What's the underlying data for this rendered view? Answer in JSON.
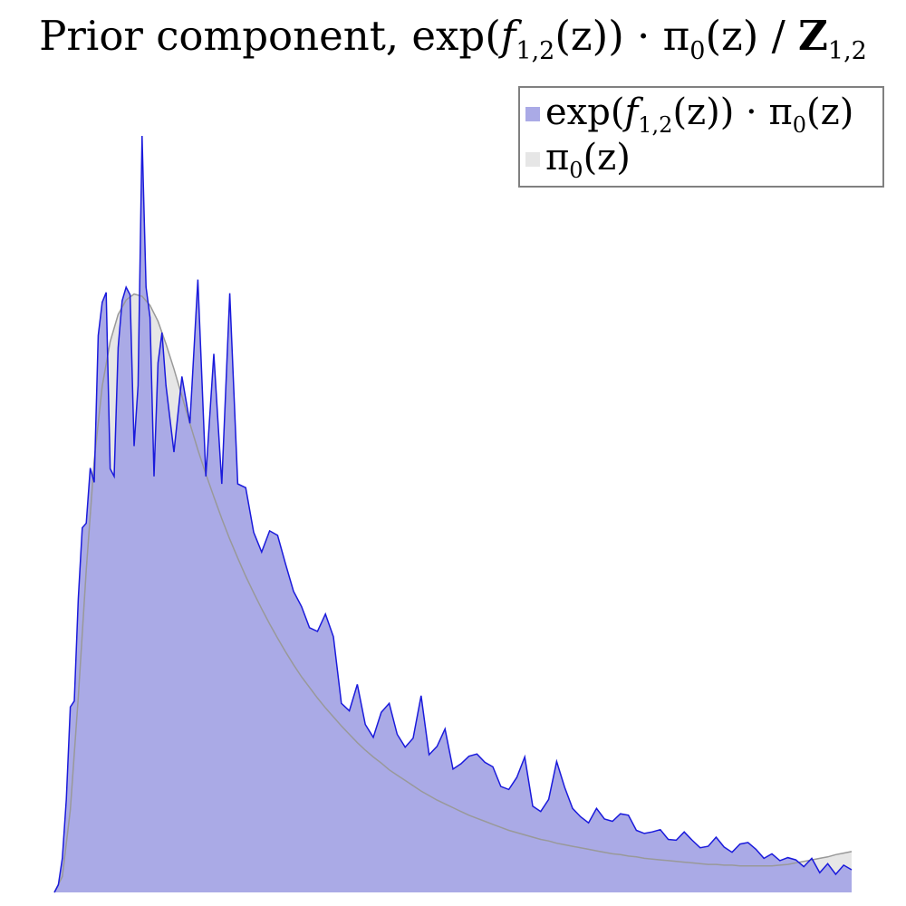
{
  "chart_data": {
    "type": "area",
    "title": {
      "prefix": "Prior component, exp(",
      "f": "f",
      "f_sub": "1,2",
      "mid": "(z)) · π",
      "pi_sub": "0",
      "tail": "(z) / ",
      "Z": "Z",
      "Z_sub": "1,2"
    },
    "xlabel": "",
    "ylabel": "",
    "grid": false,
    "axes_visible": false,
    "legend_position": "top-right",
    "colors": {
      "tilted_fill": "#aaaae6",
      "tilted_line": "#1a1adc",
      "prior_fill": "#e6e6e6",
      "prior_line": "#999999",
      "legend_border": "#808080"
    },
    "x_range": [
      0,
      1
    ],
    "y_range": [
      0,
      1
    ],
    "series": [
      {
        "key": "tilted",
        "legend": {
          "a": "exp(",
          "f": "f",
          "f_sub": "1,2",
          "b": "(z)) · π",
          "pi_sub": "0",
          "c": "(z)"
        },
        "x": [
          0.0,
          0.005,
          0.01,
          0.015,
          0.02,
          0.025,
          0.03,
          0.035,
          0.04,
          0.045,
          0.05,
          0.055,
          0.06,
          0.065,
          0.07,
          0.075,
          0.08,
          0.085,
          0.09,
          0.095,
          0.1,
          0.105,
          0.11,
          0.115,
          0.12,
          0.125,
          0.13,
          0.135,
          0.14,
          0.15,
          0.16,
          0.17,
          0.18,
          0.19,
          0.2,
          0.21,
          0.22,
          0.23,
          0.24,
          0.25,
          0.26,
          0.27,
          0.28,
          0.29,
          0.3,
          0.31,
          0.32,
          0.33,
          0.34,
          0.35,
          0.36,
          0.37,
          0.38,
          0.39,
          0.4,
          0.41,
          0.42,
          0.43,
          0.44,
          0.45,
          0.46,
          0.47,
          0.48,
          0.49,
          0.5,
          0.51,
          0.52,
          0.53,
          0.54,
          0.55,
          0.56,
          0.57,
          0.58,
          0.59,
          0.6,
          0.61,
          0.62,
          0.63,
          0.64,
          0.65,
          0.66,
          0.67,
          0.68,
          0.69,
          0.7,
          0.71,
          0.72,
          0.73,
          0.74,
          0.75,
          0.76,
          0.77,
          0.78,
          0.79,
          0.8,
          0.81,
          0.82,
          0.83,
          0.84,
          0.85,
          0.86,
          0.87,
          0.88,
          0.89,
          0.9,
          0.91,
          0.92,
          0.93,
          0.94,
          0.95,
          0.96,
          0.97,
          0.98,
          0.99,
          1.0
        ],
        "y": [
          0.0,
          0.01,
          0.045,
          0.123,
          0.245,
          0.253,
          0.388,
          0.482,
          0.488,
          0.561,
          0.542,
          0.736,
          0.78,
          0.793,
          0.56,
          0.55,
          0.72,
          0.782,
          0.8,
          0.79,
          0.59,
          0.67,
          1.0,
          0.8,
          0.76,
          0.55,
          0.7,
          0.74,
          0.67,
          0.582,
          0.682,
          0.62,
          0.81,
          0.55,
          0.712,
          0.54,
          0.792,
          0.54,
          0.535,
          0.476,
          0.45,
          0.478,
          0.472,
          0.434,
          0.398,
          0.378,
          0.35,
          0.345,
          0.368,
          0.338,
          0.25,
          0.24,
          0.275,
          0.222,
          0.205,
          0.238,
          0.25,
          0.209,
          0.192,
          0.204,
          0.26,
          0.182,
          0.193,
          0.216,
          0.163,
          0.17,
          0.18,
          0.183,
          0.172,
          0.166,
          0.14,
          0.136,
          0.152,
          0.179,
          0.114,
          0.107,
          0.123,
          0.173,
          0.139,
          0.111,
          0.1,
          0.092,
          0.111,
          0.097,
          0.094,
          0.104,
          0.102,
          0.082,
          0.078,
          0.08,
          0.083,
          0.07,
          0.069,
          0.08,
          0.069,
          0.059,
          0.061,
          0.073,
          0.06,
          0.053,
          0.064,
          0.066,
          0.057,
          0.045,
          0.051,
          0.042,
          0.046,
          0.043,
          0.034,
          0.045,
          0.026,
          0.038,
          0.024,
          0.036,
          0.03
        ]
      },
      {
        "key": "prior",
        "legend": {
          "a": "π",
          "pi_sub": "0",
          "c": "(z)"
        },
        "x": [
          0.0,
          0.01,
          0.02,
          0.03,
          0.04,
          0.05,
          0.06,
          0.07,
          0.08,
          0.09,
          0.1,
          0.11,
          0.12,
          0.13,
          0.14,
          0.15,
          0.16,
          0.17,
          0.18,
          0.19,
          0.2,
          0.21,
          0.22,
          0.23,
          0.24,
          0.25,
          0.26,
          0.27,
          0.28,
          0.29,
          0.3,
          0.31,
          0.32,
          0.33,
          0.34,
          0.35,
          0.36,
          0.37,
          0.38,
          0.39,
          0.4,
          0.41,
          0.42,
          0.43,
          0.44,
          0.45,
          0.46,
          0.47,
          0.48,
          0.49,
          0.5,
          0.51,
          0.52,
          0.53,
          0.54,
          0.55,
          0.56,
          0.57,
          0.58,
          0.59,
          0.6,
          0.61,
          0.62,
          0.63,
          0.64,
          0.65,
          0.66,
          0.67,
          0.68,
          0.69,
          0.7,
          0.71,
          0.72,
          0.73,
          0.74,
          0.75,
          0.76,
          0.77,
          0.78,
          0.79,
          0.8,
          0.81,
          0.82,
          0.83,
          0.84,
          0.85,
          0.86,
          0.87,
          0.88,
          0.89,
          0.9,
          0.91,
          0.92,
          0.93,
          0.94,
          0.95,
          0.96,
          0.97,
          0.98,
          0.99,
          1.0
        ],
        "y": [
          0.0,
          0.021,
          0.109,
          0.258,
          0.426,
          0.571,
          0.669,
          0.728,
          0.764,
          0.783,
          0.791,
          0.788,
          0.776,
          0.755,
          0.725,
          0.692,
          0.656,
          0.62,
          0.585,
          0.553,
          0.523,
          0.494,
          0.467,
          0.442,
          0.418,
          0.396,
          0.375,
          0.355,
          0.336,
          0.318,
          0.301,
          0.285,
          0.271,
          0.257,
          0.244,
          0.232,
          0.22,
          0.209,
          0.198,
          0.188,
          0.179,
          0.171,
          0.162,
          0.155,
          0.148,
          0.141,
          0.134,
          0.128,
          0.122,
          0.117,
          0.112,
          0.107,
          0.102,
          0.098,
          0.094,
          0.09,
          0.086,
          0.082,
          0.079,
          0.076,
          0.073,
          0.07,
          0.068,
          0.065,
          0.063,
          0.061,
          0.059,
          0.057,
          0.055,
          0.053,
          0.051,
          0.05,
          0.048,
          0.047,
          0.045,
          0.044,
          0.043,
          0.042,
          0.041,
          0.04,
          0.039,
          0.038,
          0.037,
          0.037,
          0.036,
          0.036,
          0.035,
          0.035,
          0.035,
          0.035,
          0.035,
          0.036,
          0.037,
          0.039,
          0.041,
          0.043,
          0.045,
          0.047,
          0.05,
          0.052,
          0.054
        ]
      }
    ]
  }
}
